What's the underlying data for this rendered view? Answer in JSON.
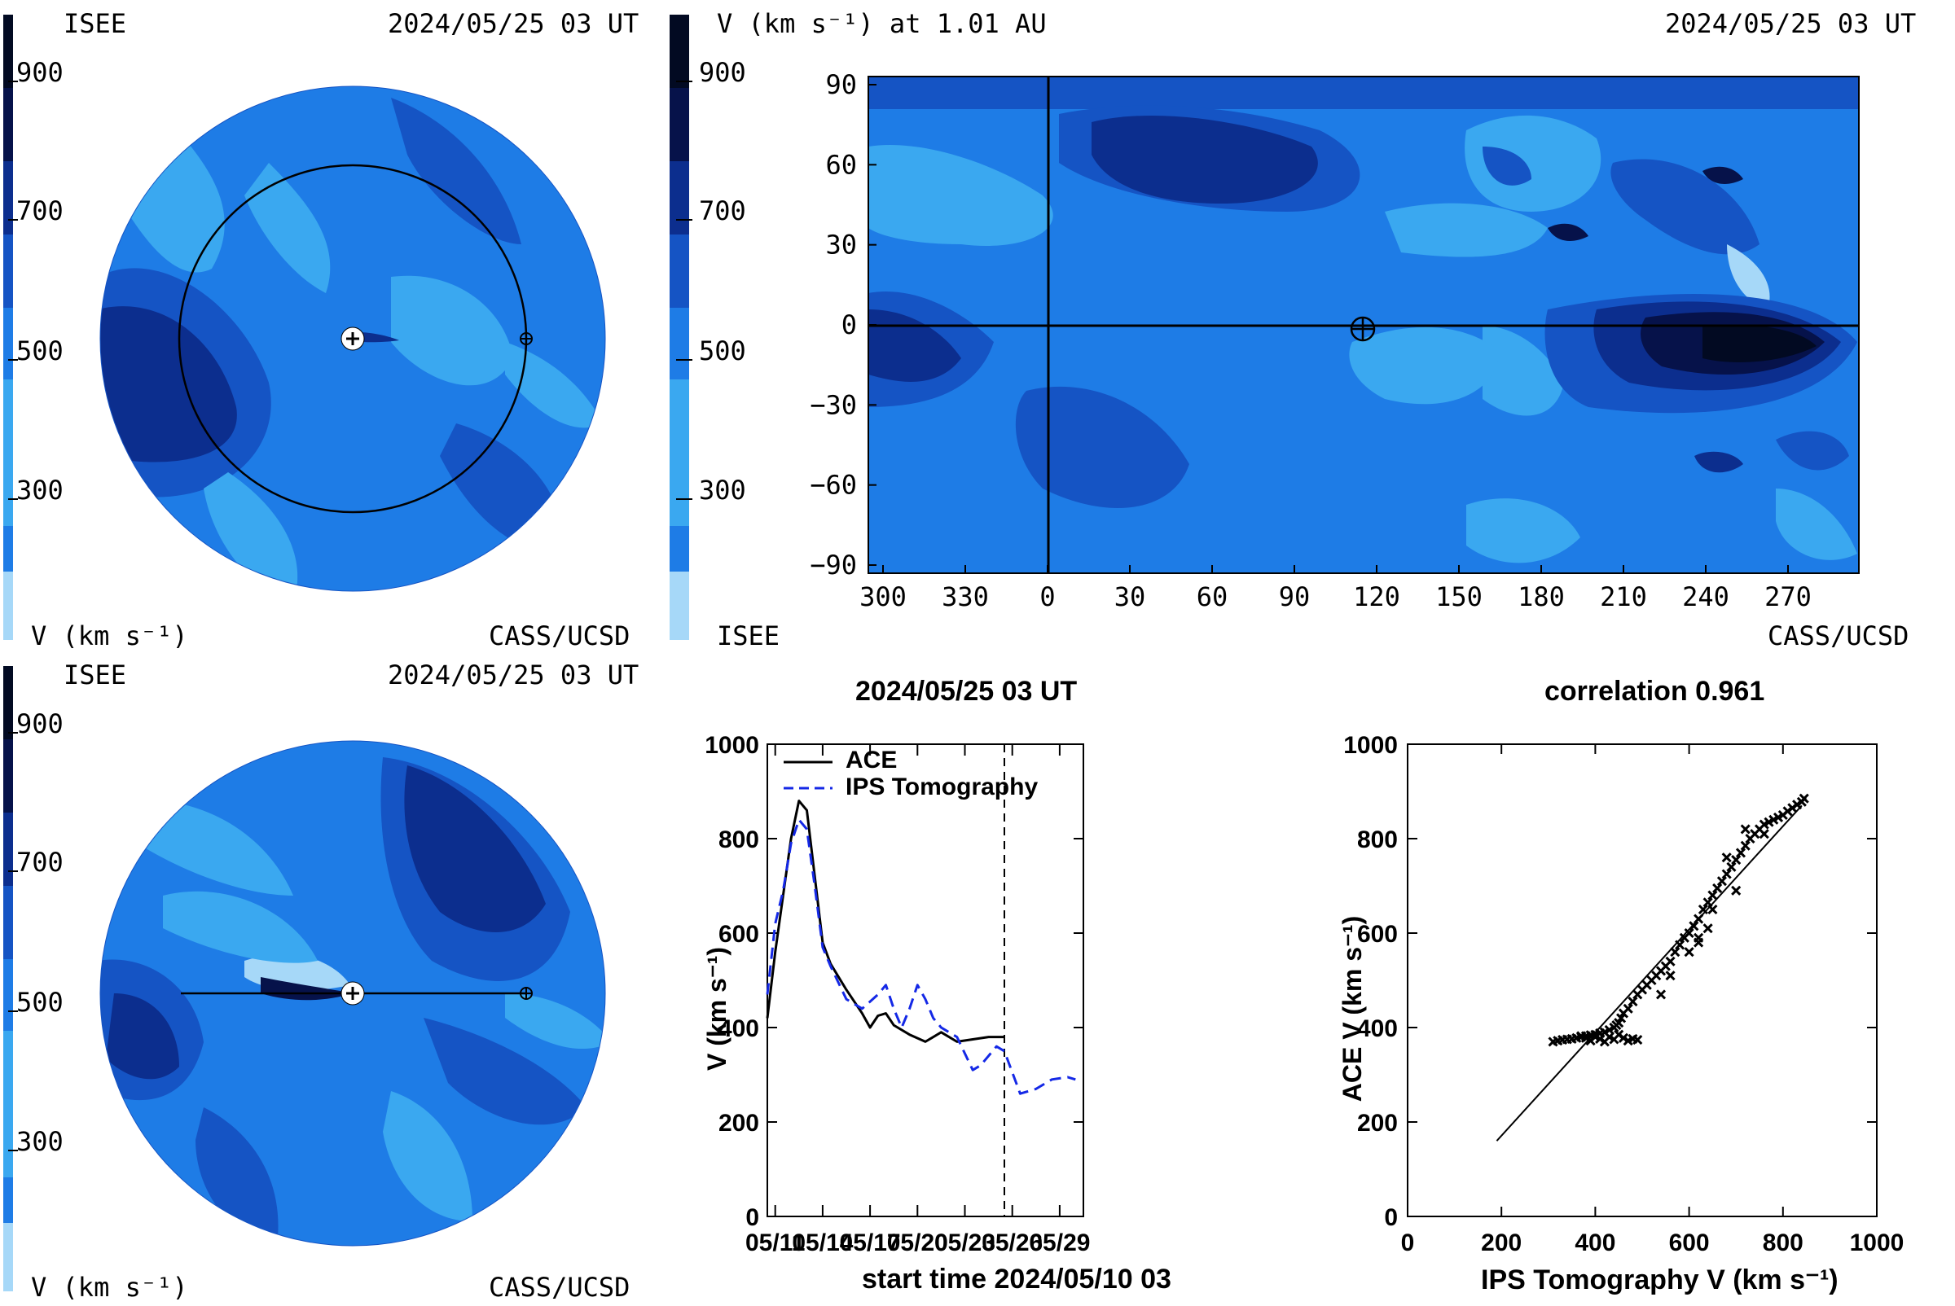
{
  "colors": {
    "scale": [
      "#a6d8f8",
      "#3aa8f0",
      "#1e7ce6",
      "#1554c4",
      "#0c2e8e",
      "#06124a",
      "#020a22"
    ],
    "series_ace": "#000000",
    "series_ips": "#1428e6"
  },
  "scale_ticks": [
    "900",
    "700",
    "500",
    "300"
  ],
  "top_left": {
    "label_org": "ISEE",
    "date": "2024/05/25 03 UT",
    "units": "V (km s⁻¹)",
    "credit": "CASS/UCSD"
  },
  "top_right": {
    "title": "V (km s⁻¹) at 1.01 AU",
    "date": "2024/05/25 03 UT",
    "label_org": "ISEE",
    "credit": "CASS/UCSD",
    "y_ticks": [
      "90",
      "60",
      "30",
      "0",
      "−30",
      "−60",
      "−90"
    ],
    "x_ticks": [
      "300",
      "330",
      "0",
      "30",
      "60",
      "90",
      "120",
      "150",
      "180",
      "210",
      "240",
      "270"
    ]
  },
  "bottom_left": {
    "label_org": "ISEE",
    "date": "2024/05/25 03 UT",
    "units": "V (km s⁻¹)",
    "credit": "CASS/UCSD"
  },
  "chart_data": [
    {
      "type": "line",
      "title": "2024/05/25 03 UT",
      "xlabel": "start time 2024/05/10 03",
      "ylabel": "V (km s⁻¹)",
      "ylim": [
        0,
        1000
      ],
      "y_ticks": [
        "1000",
        "800",
        "600",
        "400",
        "200",
        "0"
      ],
      "x_ticks": [
        "05/11",
        "05/14",
        "05/17",
        "05/20",
        "05/23",
        "05/26",
        "05/29"
      ],
      "legend_position": "top-left",
      "marker_line": "05/25 03",
      "series": [
        {
          "name": "ACE",
          "style": "solid",
          "x": [
            0,
            0.5,
            1,
            1.5,
            2,
            2.5,
            3,
            3.5,
            4,
            5,
            6,
            6.5,
            7,
            7.5,
            8,
            9,
            10,
            11,
            12,
            13,
            14,
            15
          ],
          "values": [
            420,
            560,
            680,
            800,
            880,
            860,
            720,
            580,
            535,
            480,
            430,
            400,
            425,
            430,
            405,
            385,
            370,
            390,
            370,
            375,
            380,
            380
          ]
        },
        {
          "name": "IPS Tomography",
          "style": "dashed",
          "x": [
            0,
            0.5,
            1,
            1.5,
            2,
            2.5,
            3,
            3.5,
            4,
            5,
            6,
            7,
            7.5,
            8,
            8.5,
            9,
            9.5,
            10,
            10.5,
            11,
            12,
            13,
            13.5,
            14,
            14.5,
            15,
            16,
            17,
            18,
            19,
            19.5
          ],
          "values": [
            470,
            620,
            690,
            790,
            840,
            820,
            700,
            570,
            530,
            460,
            440,
            470,
            490,
            440,
            400,
            440,
            490,
            460,
            420,
            400,
            380,
            310,
            320,
            340,
            360,
            350,
            260,
            270,
            290,
            295,
            290
          ]
        }
      ]
    },
    {
      "type": "scatter",
      "title": "correlation 0.961",
      "xlabel": "IPS Tomography V (km s⁻¹)",
      "ylabel": "ACE V (km s⁻¹)",
      "xlim": [
        0,
        1000
      ],
      "ylim": [
        0,
        1000
      ],
      "x_ticks": [
        "0",
        "200",
        "400",
        "600",
        "800",
        "1000"
      ],
      "y_ticks": [
        "1000",
        "800",
        "600",
        "400",
        "200",
        "0"
      ],
      "fit_line": [
        [
          190,
          160
        ],
        [
          840,
          870
        ]
      ],
      "points": [
        [
          310,
          370
        ],
        [
          320,
          372
        ],
        [
          330,
          374
        ],
        [
          340,
          375
        ],
        [
          350,
          376
        ],
        [
          360,
          378
        ],
        [
          370,
          380
        ],
        [
          380,
          382
        ],
        [
          390,
          384
        ],
        [
          400,
          385
        ],
        [
          410,
          388
        ],
        [
          420,
          390
        ],
        [
          430,
          395
        ],
        [
          440,
          400
        ],
        [
          445,
          405
        ],
        [
          450,
          410
        ],
        [
          455,
          420
        ],
        [
          460,
          430
        ],
        [
          470,
          440
        ],
        [
          480,
          455
        ],
        [
          490,
          470
        ],
        [
          500,
          480
        ],
        [
          510,
          490
        ],
        [
          520,
          500
        ],
        [
          530,
          510
        ],
        [
          540,
          520
        ],
        [
          550,
          530
        ],
        [
          560,
          540
        ],
        [
          570,
          560
        ],
        [
          580,
          575
        ],
        [
          590,
          590
        ],
        [
          600,
          600
        ],
        [
          610,
          615
        ],
        [
          620,
          630
        ],
        [
          630,
          650
        ],
        [
          640,
          665
        ],
        [
          650,
          680
        ],
        [
          660,
          695
        ],
        [
          670,
          710
        ],
        [
          680,
          725
        ],
        [
          690,
          740
        ],
        [
          700,
          755
        ],
        [
          710,
          770
        ],
        [
          720,
          785
        ],
        [
          730,
          800
        ],
        [
          740,
          810
        ],
        [
          750,
          820
        ],
        [
          760,
          830
        ],
        [
          770,
          835
        ],
        [
          780,
          840
        ],
        [
          790,
          845
        ],
        [
          800,
          850
        ],
        [
          810,
          858
        ],
        [
          820,
          865
        ],
        [
          830,
          872
        ],
        [
          840,
          878
        ],
        [
          845,
          885
        ],
        [
          420,
          370
        ],
        [
          430,
          380
        ],
        [
          440,
          375
        ],
        [
          450,
          385
        ],
        [
          460,
          378
        ],
        [
          470,
          372
        ],
        [
          480,
          376
        ],
        [
          490,
          374
        ],
        [
          400,
          380
        ],
        [
          410,
          376
        ],
        [
          390,
          372
        ],
        [
          380,
          378
        ],
        [
          370,
          382
        ],
        [
          540,
          470
        ],
        [
          560,
          510
        ],
        [
          600,
          560
        ],
        [
          620,
          590
        ],
        [
          640,
          610
        ],
        [
          650,
          650
        ],
        [
          700,
          690
        ],
        [
          680,
          760
        ],
        [
          720,
          820
        ],
        [
          760,
          810
        ],
        [
          620,
          580
        ]
      ]
    }
  ]
}
